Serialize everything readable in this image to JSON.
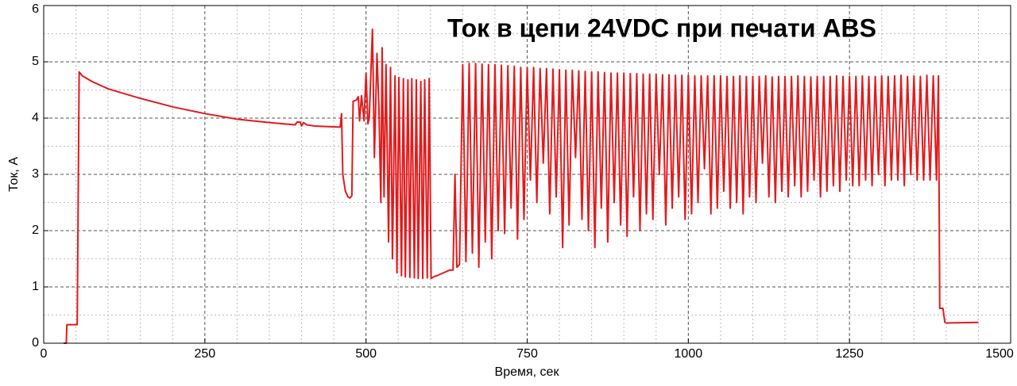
{
  "chart_data": {
    "type": "line",
    "title": "Ток в цепи 24VDC при печати ABS",
    "xlabel": "Время, сек",
    "ylabel": "Ток, А",
    "xlim": [
      0,
      1500
    ],
    "xticks": [
      0,
      250,
      500,
      750,
      1000,
      1250,
      1500
    ],
    "ylim": [
      0,
      6
    ],
    "yticks": [
      0,
      1,
      2,
      3,
      4,
      5,
      6
    ],
    "grid": true,
    "x": [
      31,
      35,
      36,
      52,
      55,
      60,
      75,
      100,
      150,
      200,
      250,
      300,
      350,
      390,
      393,
      398,
      400,
      403,
      408,
      420,
      460,
      462,
      464,
      468,
      472,
      475,
      478,
      480,
      485,
      488,
      490,
      493,
      497,
      500,
      503,
      505,
      510,
      513,
      517,
      520,
      523,
      525,
      528,
      531,
      535,
      538,
      541,
      545,
      548,
      551,
      555,
      558,
      561,
      565,
      568,
      571,
      575,
      578,
      581,
      585,
      588,
      591,
      595,
      598,
      601,
      605,
      610,
      620,
      630,
      635,
      638,
      641,
      645,
      650,
      655,
      660,
      665,
      670,
      675,
      680,
      685,
      690,
      695,
      700,
      705,
      710,
      715,
      720,
      725,
      730,
      735,
      740,
      745,
      750,
      755,
      760,
      765,
      770,
      775,
      780,
      785,
      790,
      795,
      800,
      805,
      810,
      815,
      820,
      825,
      830,
      835,
      840,
      845,
      850,
      855,
      860,
      865,
      870,
      875,
      880,
      885,
      890,
      895,
      900,
      905,
      910,
      915,
      920,
      925,
      930,
      935,
      940,
      945,
      950,
      955,
      960,
      965,
      970,
      975,
      980,
      985,
      990,
      995,
      1000,
      1005,
      1010,
      1015,
      1020,
      1025,
      1030,
      1035,
      1040,
      1045,
      1050,
      1055,
      1060,
      1065,
      1070,
      1075,
      1080,
      1085,
      1090,
      1095,
      1100,
      1105,
      1110,
      1115,
      1120,
      1125,
      1130,
      1135,
      1140,
      1145,
      1150,
      1155,
      1160,
      1165,
      1170,
      1175,
      1180,
      1185,
      1190,
      1195,
      1200,
      1205,
      1210,
      1215,
      1220,
      1225,
      1230,
      1235,
      1240,
      1245,
      1250,
      1255,
      1260,
      1265,
      1270,
      1275,
      1280,
      1285,
      1290,
      1295,
      1300,
      1305,
      1310,
      1315,
      1320,
      1325,
      1330,
      1335,
      1340,
      1345,
      1350,
      1355,
      1360,
      1365,
      1370,
      1375,
      1380,
      1385,
      1388,
      1390,
      1395,
      1398,
      1400,
      1450
    ],
    "series": [
      {
        "color": "#e31a1c",
        "values": [
          0,
          0,
          0.33,
          0.33,
          4.82,
          4.75,
          4.65,
          4.52,
          4.35,
          4.2,
          4.08,
          3.98,
          3.92,
          3.88,
          3.93,
          3.93,
          3.86,
          3.92,
          3.88,
          3.86,
          3.84,
          4.08,
          3.0,
          2.7,
          2.6,
          2.58,
          2.62,
          4.3,
          4.32,
          4.38,
          3.95,
          4.4,
          3.95,
          4.8,
          3.9,
          4.0,
          5.58,
          3.3,
          5.15,
          4.2,
          2.5,
          5.25,
          2.6,
          4.95,
          1.8,
          4.9,
          1.5,
          4.75,
          1.25,
          4.72,
          1.2,
          4.7,
          1.18,
          4.68,
          1.17,
          4.7,
          1.16,
          4.68,
          1.15,
          4.65,
          1.15,
          4.68,
          1.16,
          4.7,
          1.15,
          1.18,
          1.2,
          1.25,
          1.3,
          1.3,
          3.0,
          1.35,
          1.4,
          4.95,
          1.45,
          4.97,
          1.6,
          4.97,
          1.35,
          4.96,
          1.8,
          4.95,
          1.5,
          4.95,
          2.0,
          4.94,
          1.95,
          4.93,
          2.4,
          4.92,
          1.85,
          4.9,
          2.2,
          4.9,
          2.9,
          4.9,
          2.5,
          4.88,
          3.2,
          4.88,
          2.3,
          4.87,
          2.6,
          4.86,
          1.7,
          4.85,
          2.1,
          4.85,
          3.3,
          4.84,
          2.2,
          4.83,
          2.0,
          4.82,
          1.7,
          4.82,
          2.4,
          4.81,
          1.8,
          4.8,
          2.5,
          4.8,
          2.1,
          4.8,
          1.9,
          4.79,
          2.6,
          4.79,
          2.0,
          4.78,
          2.3,
          4.78,
          2.2,
          4.78,
          3.0,
          4.77,
          2.1,
          4.77,
          2.4,
          4.76,
          2.6,
          4.76,
          2.2,
          4.76,
          2.3,
          4.75,
          2.5,
          4.75,
          3.1,
          4.75,
          2.3,
          4.75,
          2.4,
          4.75,
          2.7,
          4.74,
          2.4,
          4.74,
          2.5,
          4.75,
          2.3,
          4.74,
          2.6,
          4.74,
          2.5,
          4.74,
          3.2,
          4.75,
          2.6,
          4.73,
          2.5,
          4.74,
          2.7,
          4.74,
          2.6,
          4.74,
          2.8,
          4.75,
          2.6,
          4.74,
          2.7,
          4.73,
          2.9,
          4.74,
          2.6,
          4.74,
          2.7,
          4.74,
          2.8,
          4.75,
          2.7,
          4.74,
          2.9,
          4.74,
          2.8,
          4.74,
          2.8,
          4.75,
          2.9,
          4.74,
          2.8,
          4.74,
          3.0,
          4.75,
          2.8,
          4.74,
          2.9,
          4.75,
          2.9,
          4.76,
          2.8,
          4.74,
          3.0,
          4.75,
          2.9,
          4.74,
          2.9,
          4.76,
          2.9,
          4.75,
          2.9,
          4.75,
          0.62,
          0.62,
          0.37,
          0.36,
          0.37
        ]
      }
    ]
  }
}
